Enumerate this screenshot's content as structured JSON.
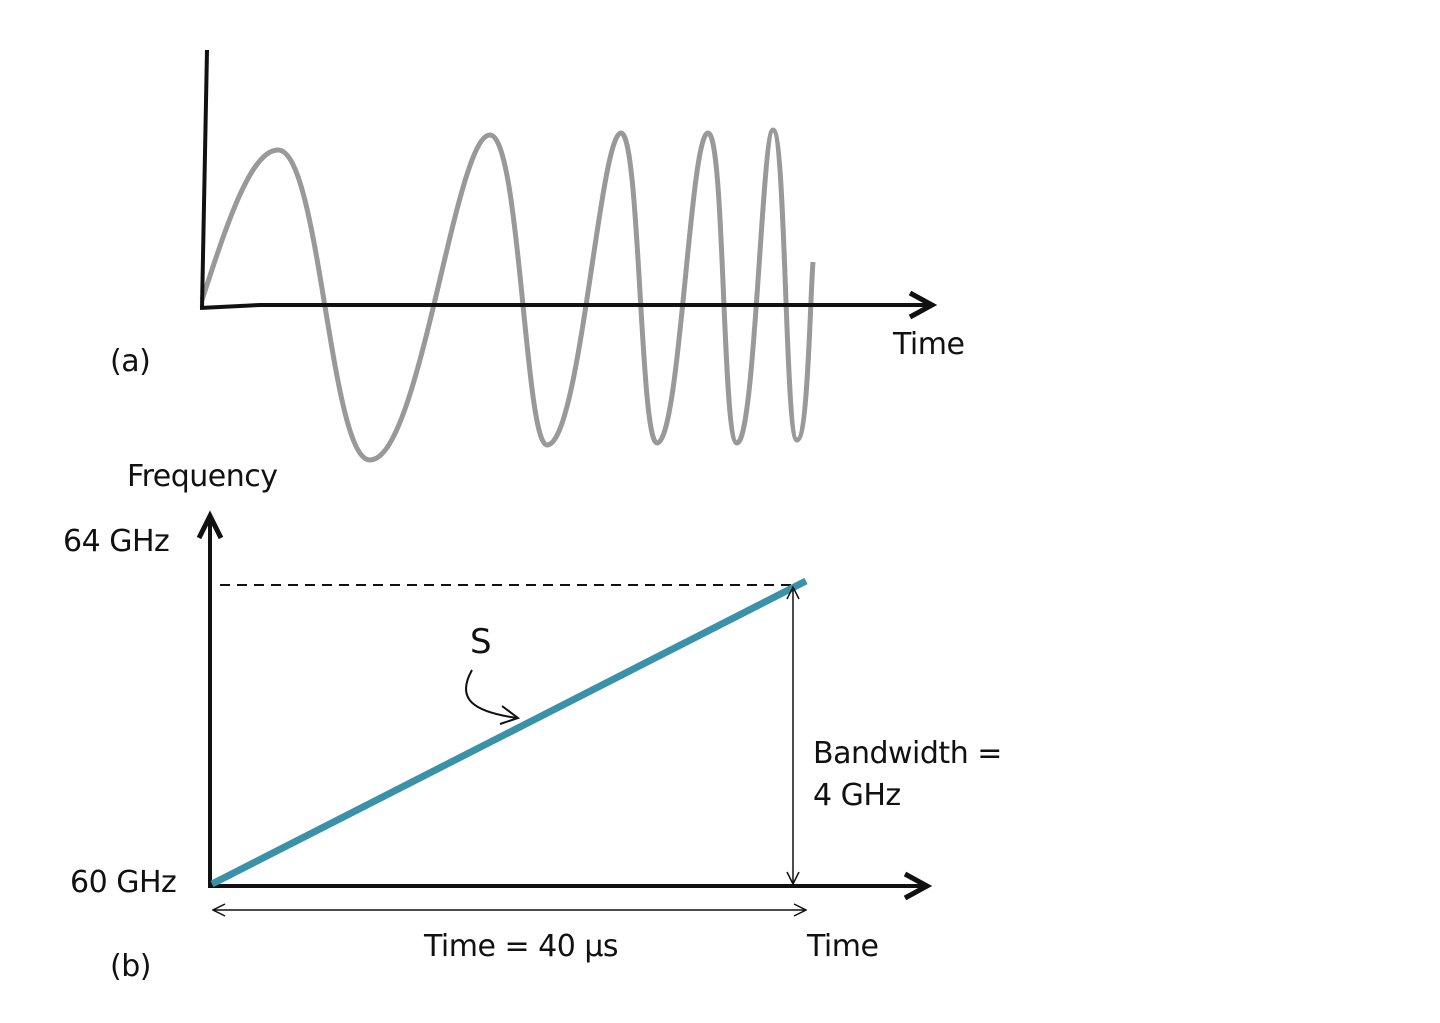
{
  "panel_a": {
    "label": "(a)",
    "x_axis_label": "Time"
  },
  "panel_b": {
    "label": "(b)",
    "y_axis_label": "Frequency",
    "x_axis_label": "Time",
    "y_top_label": "64 GHz",
    "y_bottom_label": "60 GHz",
    "slope_label": "S",
    "bandwidth_label_line1": "Bandwidth =",
    "bandwidth_label_line2": "4 GHz",
    "duration_label": "Time = 40 μs"
  },
  "colors": {
    "chirp_wave": "#999999",
    "ramp_line": "#3a92a8",
    "axes": "#111111"
  }
}
